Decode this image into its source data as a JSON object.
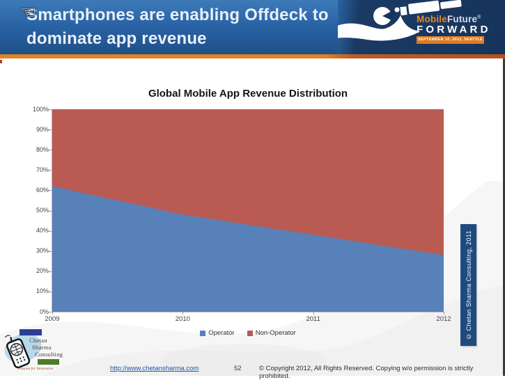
{
  "header": {
    "title_line1": "Smartphones are enabling Offdeck to",
    "title_line2": "dominate app revenue",
    "cursor_glyph": "☜"
  },
  "event_logo": {
    "brand_part1": "Mobile",
    "brand_part2": "Future",
    "registered_mark": "®",
    "brand_word": "FORWARD",
    "event_banner": "SEPTEMBER 10, 2012, SEATTLE"
  },
  "chart_data": {
    "type": "area",
    "stacked": true,
    "title": "Global Mobile App Revenue Distribution",
    "x": [
      "2009",
      "2010",
      "2011",
      "2012"
    ],
    "series": [
      {
        "name": "Operator",
        "color": "#5881BA",
        "values": [
          62,
          48,
          38,
          28
        ]
      },
      {
        "name": "Non-Operator",
        "color": "#B95B52",
        "values": [
          38,
          52,
          62,
          72
        ]
      }
    ],
    "ylim": [
      0,
      100
    ],
    "y_ticks": [
      "0%",
      "10%",
      "20%",
      "30%",
      "40%",
      "50%",
      "60%",
      "70%",
      "80%",
      "90%",
      "100%"
    ],
    "grid": false,
    "legend_position": "bottom"
  },
  "side_badge": {
    "text": "© Chetan Sharma Consulting, 2011"
  },
  "footer": {
    "url": "http://www.chetansharma.com",
    "page_number": "52",
    "copyright": "© Copyright 2012, All Rights Reserved. Copying w/o permission is strictly prohibited."
  },
  "consulting_logo": {
    "name_line1": "Chetan",
    "name_line2": "Sharma",
    "name_line3": "Consulting",
    "tagline": "Passion for Innovation"
  }
}
